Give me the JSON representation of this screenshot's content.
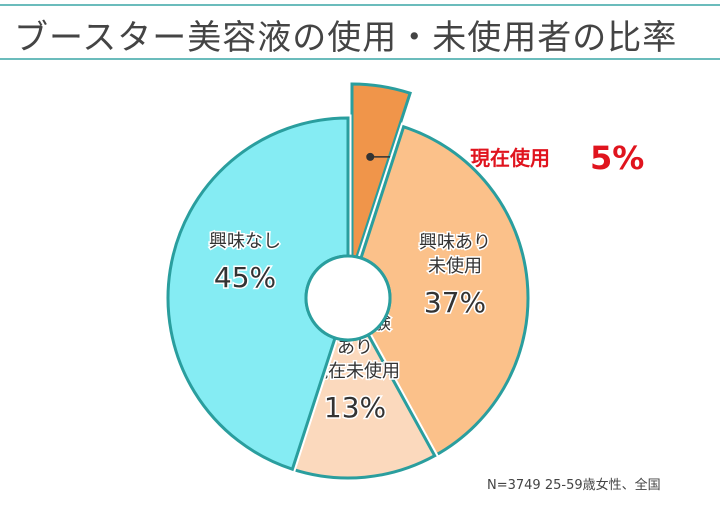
{
  "chart_data": {
    "type": "pie",
    "title": "ブースター美容液の使用・未使用者の比率",
    "start": "top, clockwise",
    "slices": [
      {
        "label": "現在使用",
        "value": 5,
        "value_label": "5%",
        "color": "#f0954a",
        "exploded": true
      },
      {
        "label": "興味あり未使用",
        "lines": [
          "興味あり",
          "未使用"
        ],
        "value": 37,
        "value_label": "37%",
        "color": "#fbc18a"
      },
      {
        "label": "使用経験あり現在未使用",
        "lines": [
          "使用経験",
          "あり",
          "現在未使用"
        ],
        "value": 13,
        "value_label": "13%",
        "color": "#fbd9bd"
      },
      {
        "label": "興味なし",
        "lines": [
          "興味なし"
        ],
        "value": 45,
        "value_label": "45%",
        "color": "#85ecf3"
      }
    ],
    "border_color": "#2a9e9e",
    "callout_color": "#e0141e",
    "note": "N=3749 25-59歳女性、全国"
  }
}
